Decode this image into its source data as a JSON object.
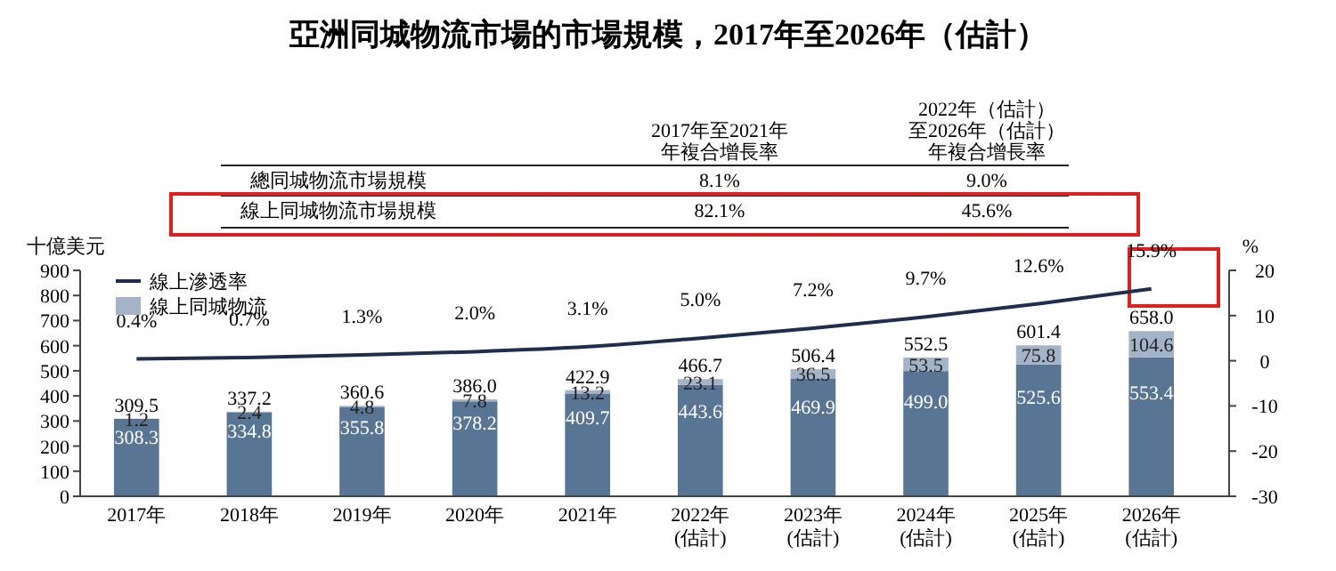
{
  "chart_data": {
    "type": "bar",
    "title": "亞洲同城物流市場的市場規模，2017年至2026年（估計）",
    "ylabel": "十億美元",
    "y2label": "%",
    "categories": [
      "2017年",
      "2018年",
      "2019年",
      "2020年",
      "2021年",
      "2022年\n(估計)",
      "2023年\n(估計)",
      "2024年\n(估計)",
      "2025年\n(估計)",
      "2026年\n(估計)"
    ],
    "stacked": true,
    "series": [
      {
        "color": "#587693",
        "values": [
          308.3,
          334.8,
          355.8,
          378.2,
          409.7,
          443.6,
          469.9,
          499.0,
          525.6,
          553.4
        ],
        "value_labels": [
          "308.3",
          "334.8",
          "355.8",
          "378.2",
          "409.7",
          "443.6",
          "469.9",
          "499.0",
          "525.6",
          "553.4"
        ]
      },
      {
        "name": "線上同城物流",
        "color": "#a3b4c8",
        "values": [
          1.2,
          2.4,
          4.8,
          7.8,
          13.2,
          23.1,
          36.5,
          53.5,
          75.8,
          104.6
        ],
        "value_labels": [
          "1.2",
          "2.4",
          "4.8",
          "7.8",
          "13.2",
          "23.1",
          "36.5",
          "53.5",
          "75.8",
          "104.6"
        ]
      },
      {
        "name": "線上滲透率",
        "type": "line",
        "axis": "y2",
        "color": "#1f2d4f",
        "values": [
          0.4,
          0.7,
          1.3,
          2.0,
          3.1,
          5.0,
          7.2,
          9.7,
          12.6,
          15.9
        ],
        "value_labels": [
          "0.4%",
          "0.7%",
          "1.3%",
          "2.0%",
          "3.1%",
          "5.0%",
          "7.2%",
          "9.7%",
          "12.6%",
          "15.9%"
        ]
      }
    ],
    "totals": [
      "309.5",
      "337.2",
      "360.6",
      "386.0",
      "422.9",
      "466.7",
      "506.4",
      "552.5",
      "601.4",
      "658.0"
    ],
    "ylim": [
      0,
      900
    ],
    "yticks": [
      0,
      100,
      200,
      300,
      400,
      500,
      600,
      700,
      800,
      900
    ],
    "y2lim": [
      -30,
      20
    ],
    "y2ticks": [
      -30,
      -20,
      -10,
      0,
      10,
      20
    ],
    "legend": "top left",
    "grid": false,
    "marker": "none",
    "line_style": "solid",
    "annotations": [
      "2017年至2021年",
      "年複合增長率",
      "2022年（估計）",
      "至2026年（估計）",
      "年複合增長率",
      "總同城物流市場規模",
      "8.1%",
      "9.0%",
      "線上同城物流市場規模",
      "82.1%",
      "45.6%"
    ]
  }
}
